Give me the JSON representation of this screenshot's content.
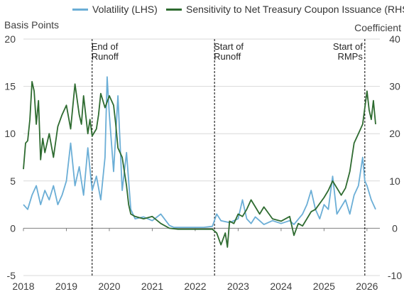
{
  "legend": [
    {
      "label": "Volatility (LHS)",
      "color": "#6baed6"
    },
    {
      "label": "Sensitivity to Net Treasury Coupon Issuance (RHS)",
      "color": "#2e6b30"
    }
  ],
  "colors": {
    "volatility": "#6baed6",
    "sensitivity": "#2e6b30",
    "grid": "#d9d9d9",
    "event": "#000000"
  },
  "chart_data": {
    "type": "line",
    "ylabel_left": "Basis Points",
    "ylabel_right": "Coefficient",
    "left_axis": {
      "min": -5,
      "max": 20,
      "ticks": [
        -5,
        0,
        5,
        10,
        15,
        20
      ]
    },
    "right_axis": {
      "min": -10,
      "max": 40,
      "ticks": [
        -10,
        0,
        10,
        20,
        30,
        40
      ]
    },
    "x_ticks": [
      "2018",
      "2019",
      "2020",
      "2021",
      "2022",
      "2023",
      "2024",
      "2025",
      "2026"
    ],
    "x_range": [
      2018.0,
      2026.3
    ],
    "grid": true,
    "legend_position": "top",
    "events": [
      {
        "label": [
          "End of",
          "Runoff"
        ],
        "x": 2019.6,
        "align": "left"
      },
      {
        "label": [
          "Start of",
          "Runoff"
        ],
        "x": 2022.45,
        "align": "left"
      },
      {
        "label": [
          "Start of",
          "RMPs"
        ],
        "x": 2025.95,
        "align": "right"
      }
    ],
    "series": [
      {
        "name": "Volatility (LHS)",
        "axis": "left",
        "x": [
          2018.0,
          2018.1,
          2018.2,
          2018.3,
          2018.4,
          2018.5,
          2018.6,
          2018.7,
          2018.8,
          2018.9,
          2019.0,
          2019.1,
          2019.2,
          2019.3,
          2019.4,
          2019.5,
          2019.6,
          2019.7,
          2019.8,
          2019.9,
          2019.95,
          2020.0,
          2020.1,
          2020.2,
          2020.3,
          2020.4,
          2020.5,
          2020.6,
          2020.8,
          2021.0,
          2021.2,
          2021.4,
          2021.5,
          2021.6,
          2021.8,
          2022.0,
          2022.2,
          2022.4,
          2022.5,
          2022.6,
          2022.8,
          2023.0,
          2023.1,
          2023.2,
          2023.3,
          2023.4,
          2023.6,
          2023.8,
          2024.0,
          2024.2,
          2024.3,
          2024.5,
          2024.6,
          2024.7,
          2024.8,
          2024.9,
          2025.0,
          2025.1,
          2025.2,
          2025.3,
          2025.5,
          2025.6,
          2025.7,
          2025.8,
          2025.85,
          2025.9,
          2025.95,
          2026.0,
          2026.1,
          2026.2
        ],
        "values": [
          2.5,
          2.0,
          3.5,
          4.5,
          2.5,
          4.0,
          3.0,
          4.5,
          2.5,
          3.5,
          5.0,
          9.0,
          4.5,
          6.5,
          3.5,
          8.5,
          4.0,
          5.5,
          3.0,
          7.5,
          16.0,
          12.0,
          6.0,
          14.0,
          4.0,
          8.0,
          2.0,
          1.0,
          1.2,
          0.8,
          1.5,
          0.3,
          0.1,
          0.1,
          0.1,
          0.1,
          0.1,
          0.2,
          1.5,
          0.8,
          0.6,
          1.0,
          3.0,
          1.0,
          0.5,
          1.2,
          0.4,
          0.8,
          0.5,
          0.8,
          0.4,
          1.5,
          2.5,
          4.0,
          2.0,
          1.0,
          2.5,
          2.0,
          5.5,
          1.5,
          3.0,
          1.5,
          3.5,
          4.5,
          6.0,
          7.5,
          5.0,
          4.5,
          3.0,
          2.0
        ]
      },
      {
        "name": "Sensitivity to Net Treasury Coupon Issuance (RHS)",
        "axis": "right",
        "x": [
          2018.0,
          2018.05,
          2018.1,
          2018.15,
          2018.2,
          2018.25,
          2018.3,
          2018.35,
          2018.4,
          2018.45,
          2018.5,
          2018.6,
          2018.7,
          2018.8,
          2018.9,
          2019.0,
          2019.1,
          2019.2,
          2019.3,
          2019.35,
          2019.4,
          2019.5,
          2019.55,
          2019.6,
          2019.7,
          2019.75,
          2019.8,
          2019.9,
          2020.0,
          2020.1,
          2020.15,
          2020.2,
          2020.3,
          2020.4,
          2020.45,
          2020.5,
          2020.6,
          2020.8,
          2021.0,
          2021.2,
          2021.4,
          2021.6,
          2021.8,
          2022.0,
          2022.2,
          2022.4,
          2022.5,
          2022.6,
          2022.7,
          2022.75,
          2022.8,
          2022.9,
          2023.0,
          2023.1,
          2023.2,
          2023.3,
          2023.5,
          2023.6,
          2023.8,
          2024.0,
          2024.2,
          2024.3,
          2024.4,
          2024.5,
          2024.6,
          2024.7,
          2024.8,
          2025.0,
          2025.1,
          2025.2,
          2025.4,
          2025.5,
          2025.6,
          2025.7,
          2025.8,
          2025.9,
          2026.0,
          2026.05,
          2026.1,
          2026.15,
          2026.2
        ],
        "values": [
          12.5,
          18.0,
          18.5,
          23.0,
          31.0,
          29.0,
          22.0,
          27.0,
          14.5,
          19.0,
          16.0,
          20.0,
          15.0,
          21.5,
          24.0,
          26.0,
          21.0,
          30.5,
          24.0,
          22.0,
          28.0,
          20.0,
          23.0,
          19.5,
          21.0,
          24.0,
          28.5,
          25.5,
          28.0,
          26.0,
          22.0,
          17.0,
          15.0,
          9.0,
          5.0,
          3.0,
          2.5,
          2.0,
          2.5,
          1.0,
          0.0,
          -0.2,
          -0.2,
          -0.2,
          -0.2,
          -0.2,
          -1.0,
          -3.5,
          -1.0,
          -4.0,
          1.5,
          1.0,
          3.0,
          2.5,
          4.0,
          6.0,
          3.0,
          4.5,
          2.0,
          1.5,
          2.5,
          -1.5,
          1.0,
          0.5,
          2.0,
          3.5,
          4.0,
          6.5,
          8.0,
          10.0,
          7.0,
          8.5,
          12.0,
          18.0,
          20.0,
          22.0,
          29.0,
          25.0,
          23.0,
          27.0,
          22.0
        ]
      }
    ]
  }
}
